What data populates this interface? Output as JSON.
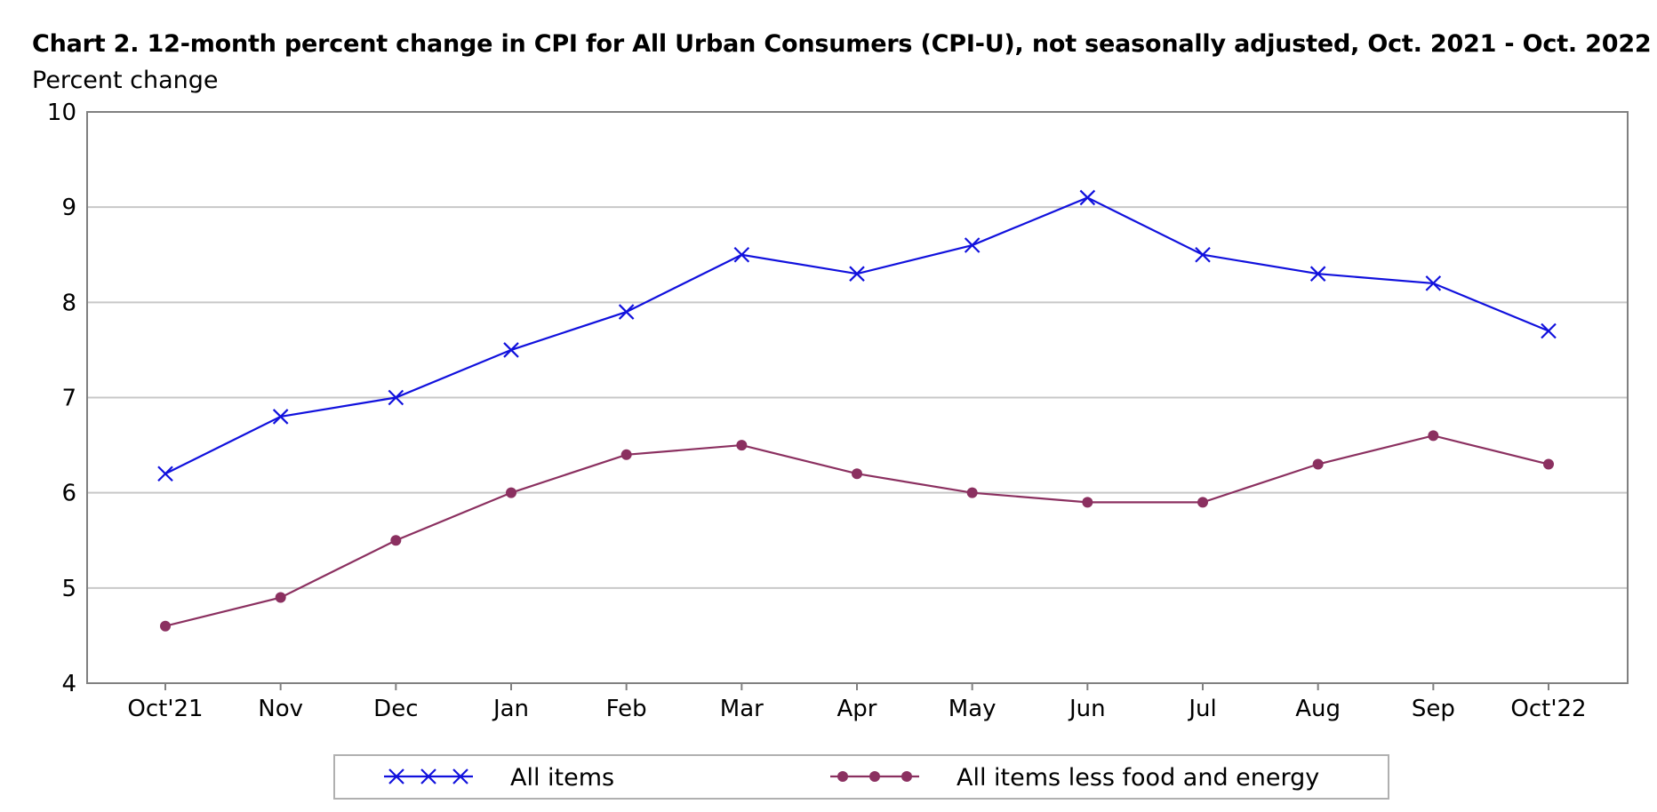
{
  "chart_data": {
    "type": "line",
    "title": "Chart 2. 12-month percent change in CPI for All Urban Consumers (CPI-U), not seasonally adjusted, Oct. 2021 - Oct. 2022",
    "ylabel": "Percent change",
    "xlabel": "",
    "categories": [
      "Oct'21",
      "Nov",
      "Dec",
      "Jan",
      "Feb",
      "Mar",
      "Apr",
      "May",
      "Jun",
      "Jul",
      "Aug",
      "Sep",
      "Oct'22"
    ],
    "ylim": [
      4,
      10
    ],
    "yticks": [
      "4",
      "5",
      "6",
      "7",
      "8",
      "9",
      "10"
    ],
    "grid": "horizontal",
    "legend_position": "bottom",
    "series": [
      {
        "name": "All items",
        "color": "#1111dd",
        "marker": "x",
        "values": [
          6.2,
          6.8,
          7.0,
          7.5,
          7.9,
          8.5,
          8.3,
          8.6,
          9.1,
          8.5,
          8.3,
          8.2,
          7.7
        ]
      },
      {
        "name": "All items less food and energy",
        "color": "#8b3060",
        "marker": "circle",
        "values": [
          4.6,
          4.9,
          5.5,
          6.0,
          6.4,
          6.5,
          6.2,
          6.0,
          5.9,
          5.9,
          6.3,
          6.6,
          6.3
        ]
      }
    ]
  }
}
